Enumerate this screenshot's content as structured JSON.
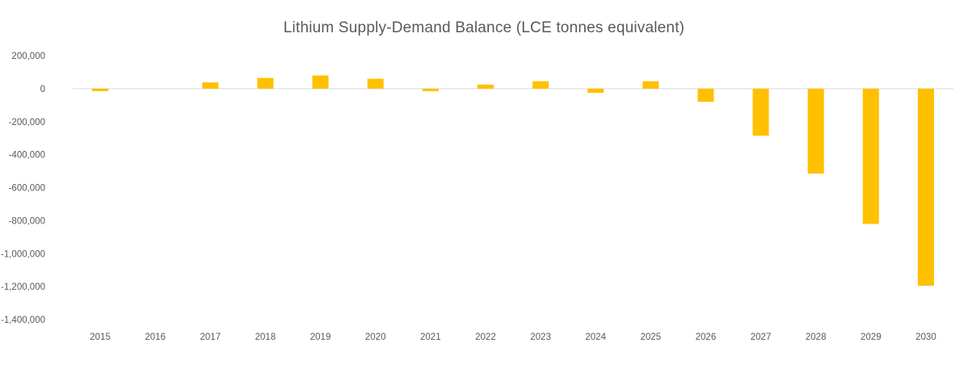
{
  "chart_data": {
    "type": "bar",
    "title": "Lithium Supply-Demand Balance (LCE tonnes equivalent)",
    "xlabel": "",
    "ylabel": "",
    "categories": [
      "2015",
      "2016",
      "2017",
      "2018",
      "2019",
      "2020",
      "2021",
      "2022",
      "2023",
      "2024",
      "2025",
      "2026",
      "2027",
      "2028",
      "2029",
      "2030"
    ],
    "values": [
      -15000,
      0,
      38000,
      65000,
      80000,
      60000,
      -15000,
      25000,
      45000,
      -25000,
      45000,
      -80000,
      -285000,
      -515000,
      -820000,
      -1195000
    ],
    "ylim": [
      -1400000,
      200000
    ],
    "yticks": [
      200000,
      0,
      -200000,
      -400000,
      -600000,
      -800000,
      -1000000,
      -1200000,
      -1400000
    ],
    "ytick_labels": [
      "200,000",
      "0",
      "-200,000",
      "-400,000",
      "-600,000",
      "-800,000",
      "-1,000,000",
      "-1,200,000",
      "-1,400,000"
    ],
    "bar_color": "#FFC000",
    "zero_line_color": "#D9D9D9",
    "grid": false,
    "legend": "none"
  }
}
